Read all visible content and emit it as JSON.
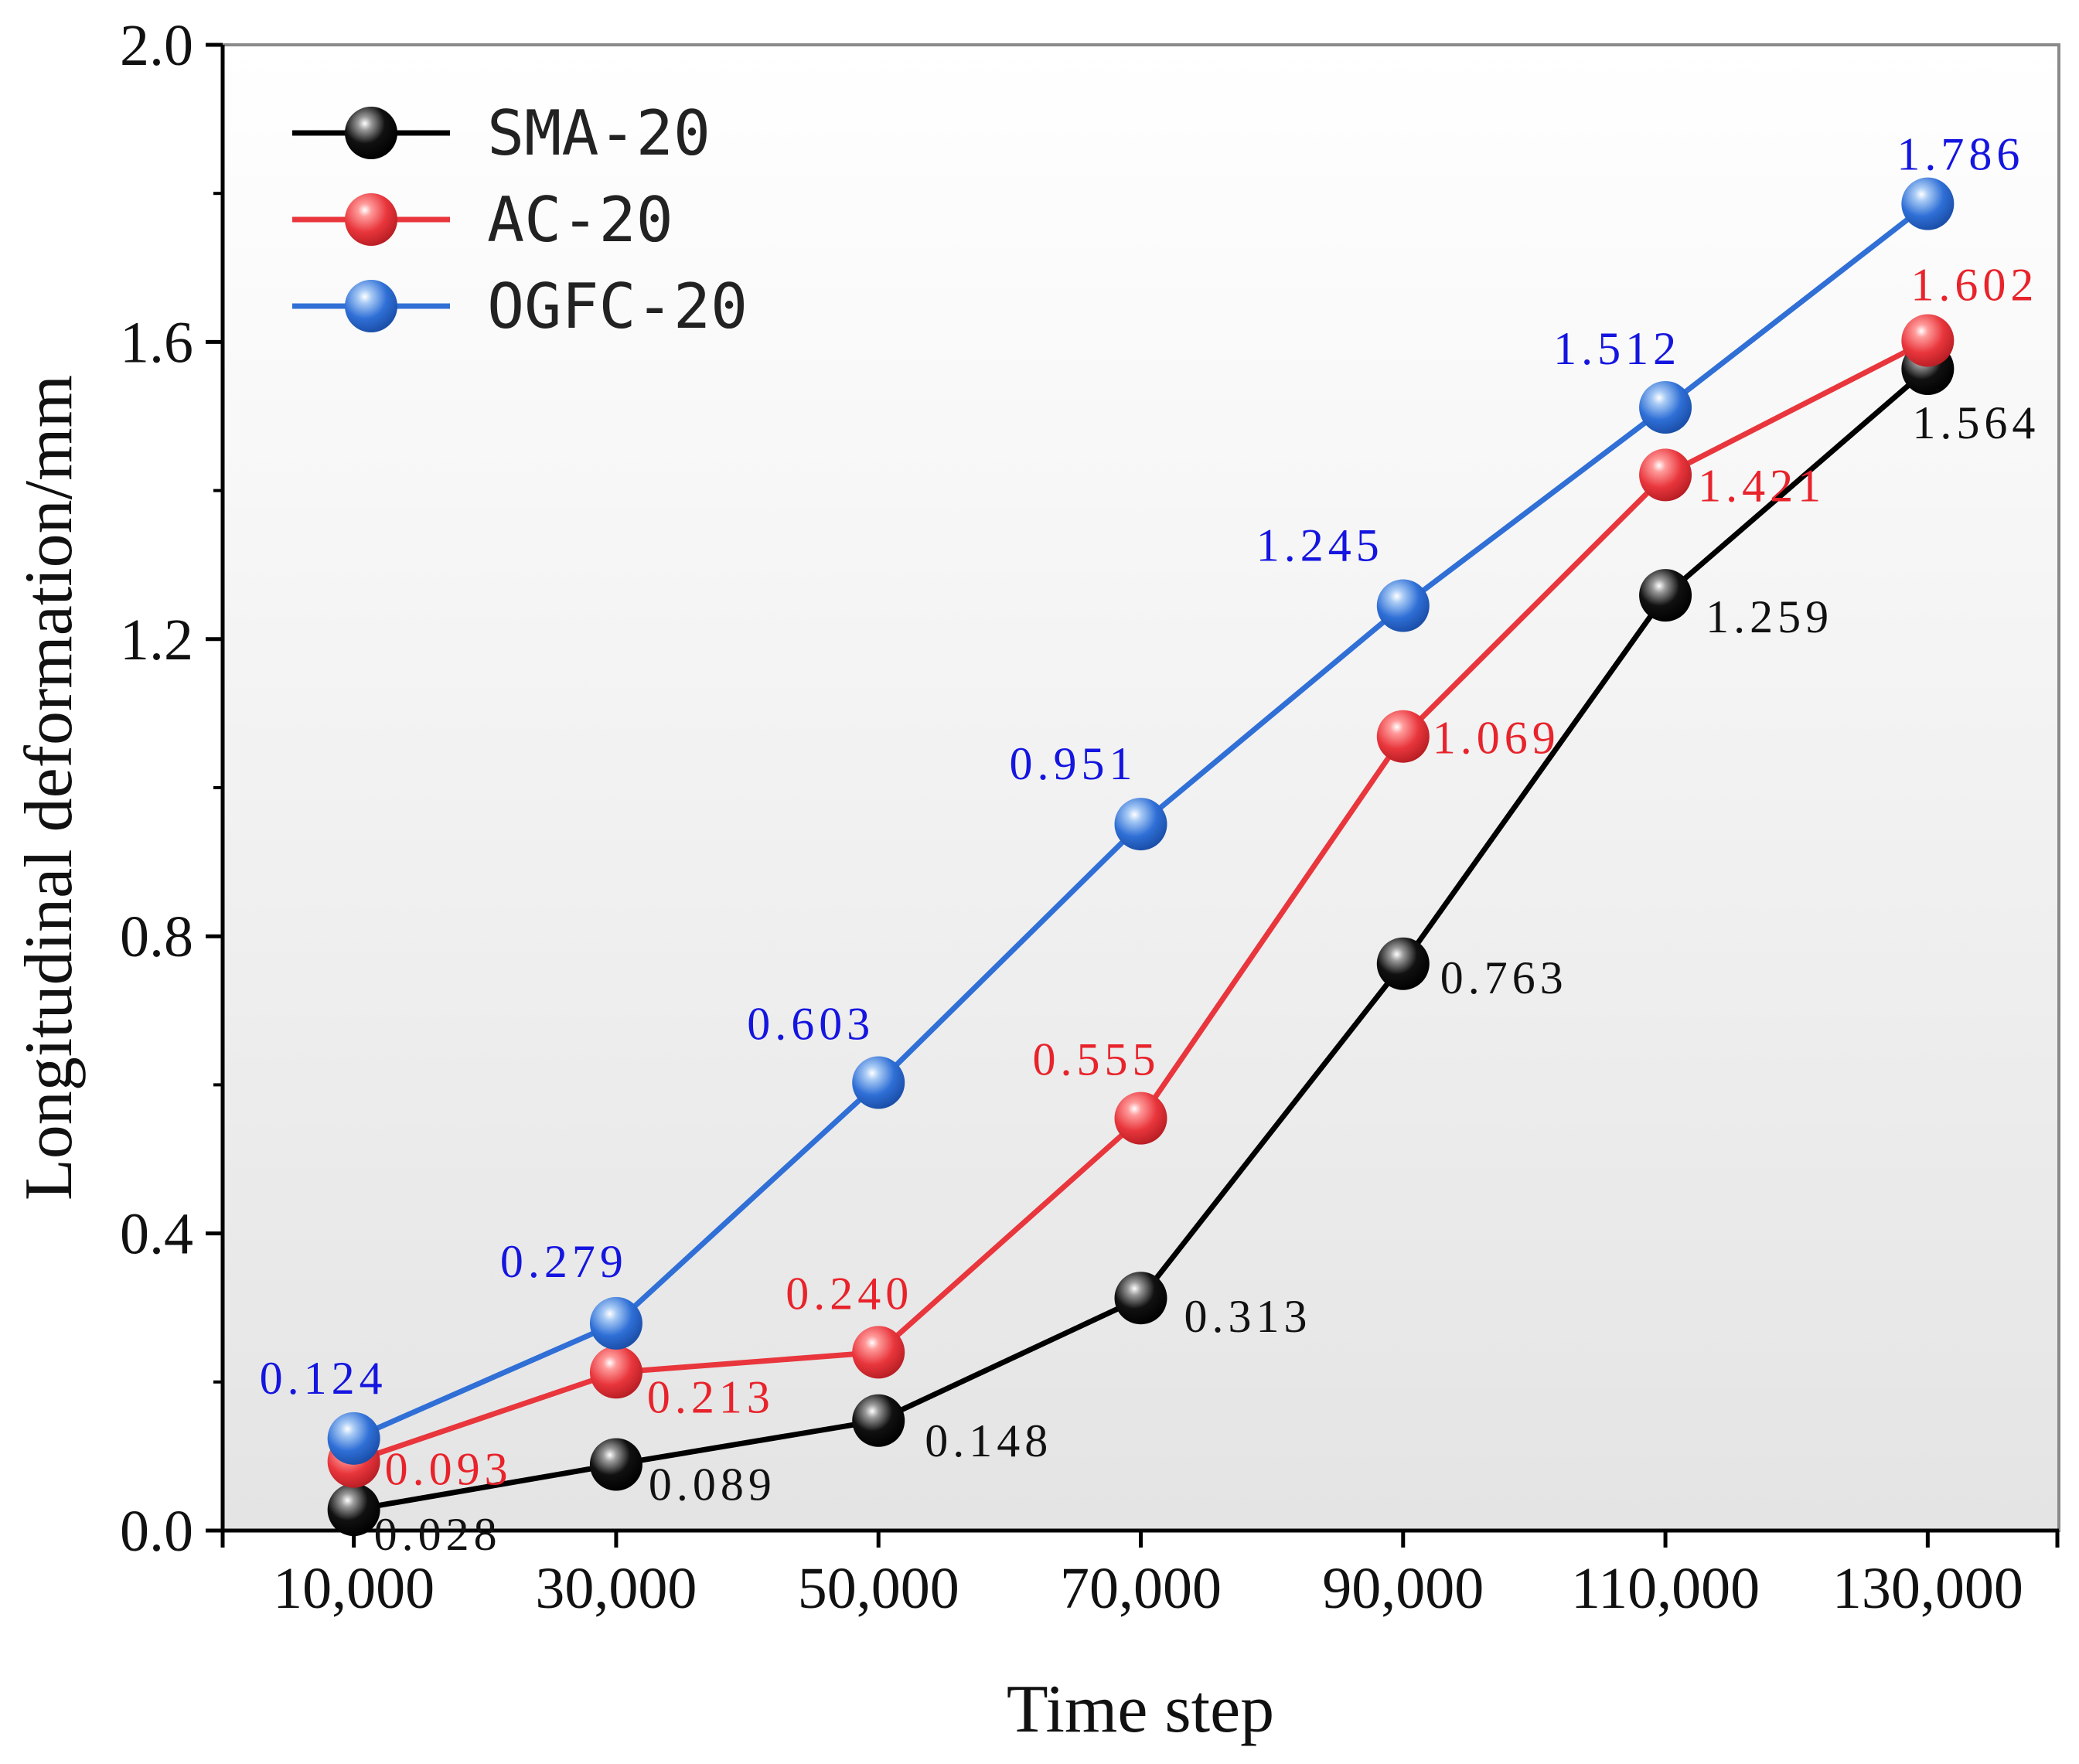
{
  "chart_data": {
    "type": "line",
    "title": "",
    "xlabel": "Time step",
    "ylabel": "Longitudinal deformation/mm",
    "categories": [
      "10,000",
      "30,000",
      "50,000",
      "70,000",
      "90,000",
      "110,000",
      "130,000"
    ],
    "x": [
      10000,
      30000,
      50000,
      70000,
      90000,
      110000,
      130000
    ],
    "xlim": [
      0,
      140000
    ],
    "ylim": [
      0.0,
      2.0
    ],
    "yticks": [
      0.0,
      0.4,
      0.8,
      1.2,
      1.6,
      2.0
    ],
    "ytick_labels": [
      "0.0",
      "0.4",
      "0.8",
      "1.2",
      "1.6",
      "2.0"
    ],
    "grid": false,
    "legend_position": "top-left",
    "series": [
      {
        "name": "SMA-20",
        "color": "#000000",
        "values": [
          0.028,
          0.089,
          0.148,
          0.313,
          0.763,
          1.259,
          1.564
        ],
        "labels": [
          "0.028",
          "0.089",
          "0.148",
          "0.313",
          "0.763",
          "1.259",
          "1.564"
        ],
        "label_placement": "below-right"
      },
      {
        "name": "AC-20",
        "color": "#e8363c",
        "values": [
          0.093,
          0.213,
          0.24,
          0.555,
          1.069,
          1.421,
          1.602
        ],
        "labels": [
          "0.093",
          "0.213",
          "0.240",
          "0.555",
          "1.069",
          "1.421",
          "1.602"
        ],
        "label_placement": "mixed"
      },
      {
        "name": "OGFC-20",
        "color": "#2f6fd6",
        "values": [
          0.124,
          0.279,
          0.603,
          0.951,
          1.245,
          1.512,
          1.786
        ],
        "labels": [
          "0.124",
          "0.279",
          "0.603",
          "0.951",
          "1.245",
          "1.512",
          "1.786"
        ],
        "label_placement": "above-left"
      }
    ],
    "label_colors": {
      "SMA-20": "#111111",
      "AC-20": "#e8232b",
      "OGFC-20": "#1515e0"
    }
  }
}
